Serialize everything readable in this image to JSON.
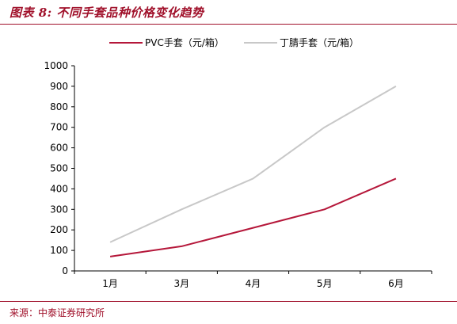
{
  "header": {
    "title": "图表 8:  不同手套品种价格变化趋势"
  },
  "footer": {
    "source": "来源：中泰证券研究所"
  },
  "colors": {
    "accent": "#a0102a",
    "series_pvc": "#b5173a",
    "series_nitrile": "#c8c8c8"
  },
  "chart_data": {
    "type": "line",
    "categories": [
      "1月",
      "3月",
      "4月",
      "5月",
      "6月"
    ],
    "series": [
      {
        "name": "PVC手套（元/箱）",
        "values": [
          70,
          120,
          210,
          300,
          450
        ]
      },
      {
        "name": "丁腈手套（元/箱）",
        "values": [
          140,
          300,
          450,
          700,
          900
        ]
      }
    ],
    "title": "",
    "xlabel": "",
    "ylabel": "",
    "ylim": [
      0,
      1000
    ],
    "yticks": [
      "0",
      "100",
      "200",
      "300",
      "400",
      "500",
      "600",
      "700",
      "800",
      "900",
      "1000"
    ],
    "grid": false,
    "legend": "top-center"
  }
}
